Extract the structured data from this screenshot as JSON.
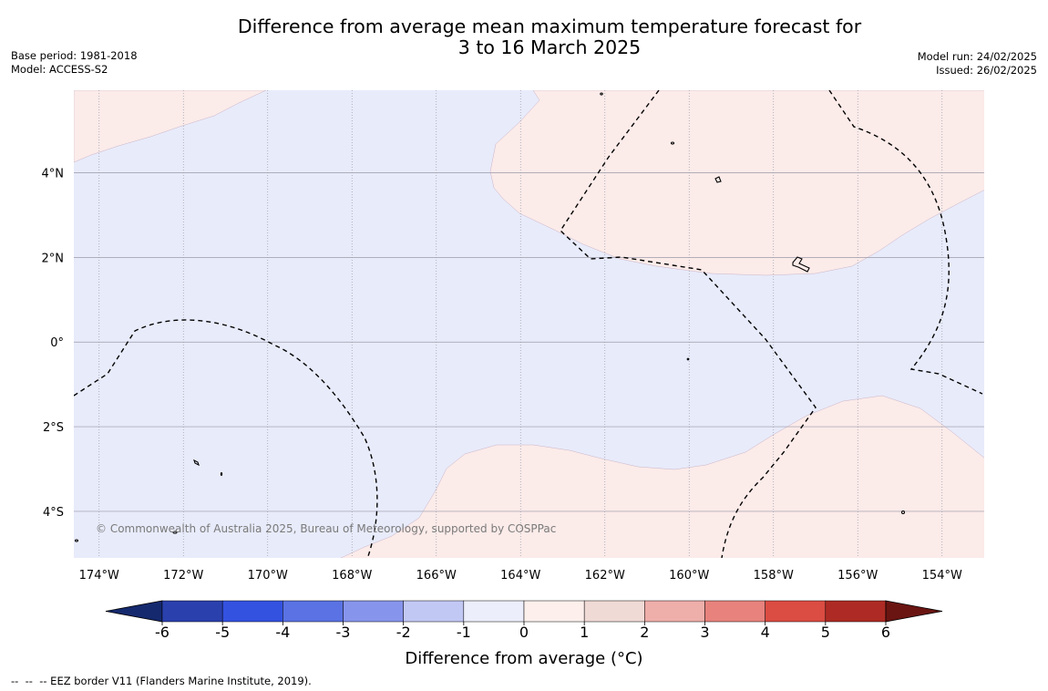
{
  "title": {
    "line1": "Difference from average mean maximum temperature forecast for",
    "line2": "3 to 16 March 2025"
  },
  "meta": {
    "base_period": "Base period: 1981-2018",
    "model": "Model: ACCESS-S2",
    "model_run": "Model run: 24/02/2025",
    "issued": "Issued: 26/02/2025"
  },
  "map": {
    "lon_range": [
      -174.6,
      -153.0
    ],
    "lat_range": [
      -5.1,
      5.95
    ],
    "lon_ticks": [
      -174,
      -172,
      -170,
      -168,
      -166,
      -164,
      -162,
      -160,
      -158,
      -156,
      -154
    ],
    "lon_tick_labels": [
      "174°W",
      "172°W",
      "170°W",
      "168°W",
      "166°W",
      "164°W",
      "162°W",
      "160°W",
      "158°W",
      "156°W",
      "154°W"
    ],
    "lat_ticks": [
      4,
      2,
      0,
      -2,
      -4
    ],
    "lat_tick_labels": [
      "4°N",
      "2°N",
      "0°",
      "2°S",
      "4°S"
    ],
    "credit": "© Commonwealth of Australia 2025, Bureau of Meteorology, supported by COSPPac",
    "colors": {
      "cool_fill": "#e8ebfa",
      "warm_fill": "#fbebe9",
      "grid": "#9a9aa8"
    }
  },
  "colorbar": {
    "label": "Difference from average (°C)",
    "ticks": [
      "-6",
      "-5",
      "-4",
      "-3",
      "-2",
      "-1",
      "0",
      "1",
      "2",
      "3",
      "4",
      "5",
      "6"
    ],
    "colors": [
      "#15296e",
      "#2a40ad",
      "#3352e0",
      "#5a72e3",
      "#8794ec",
      "#c2c8f4",
      "#eceefb",
      "#fcefec",
      "#f0dad6",
      "#eeaeaa",
      "#e7827d",
      "#db4c42",
      "#ad2b24",
      "#6a1512"
    ]
  },
  "footnote": "--  --  -- EEZ border V11 (Flanders Marine Institute, 2019)."
}
